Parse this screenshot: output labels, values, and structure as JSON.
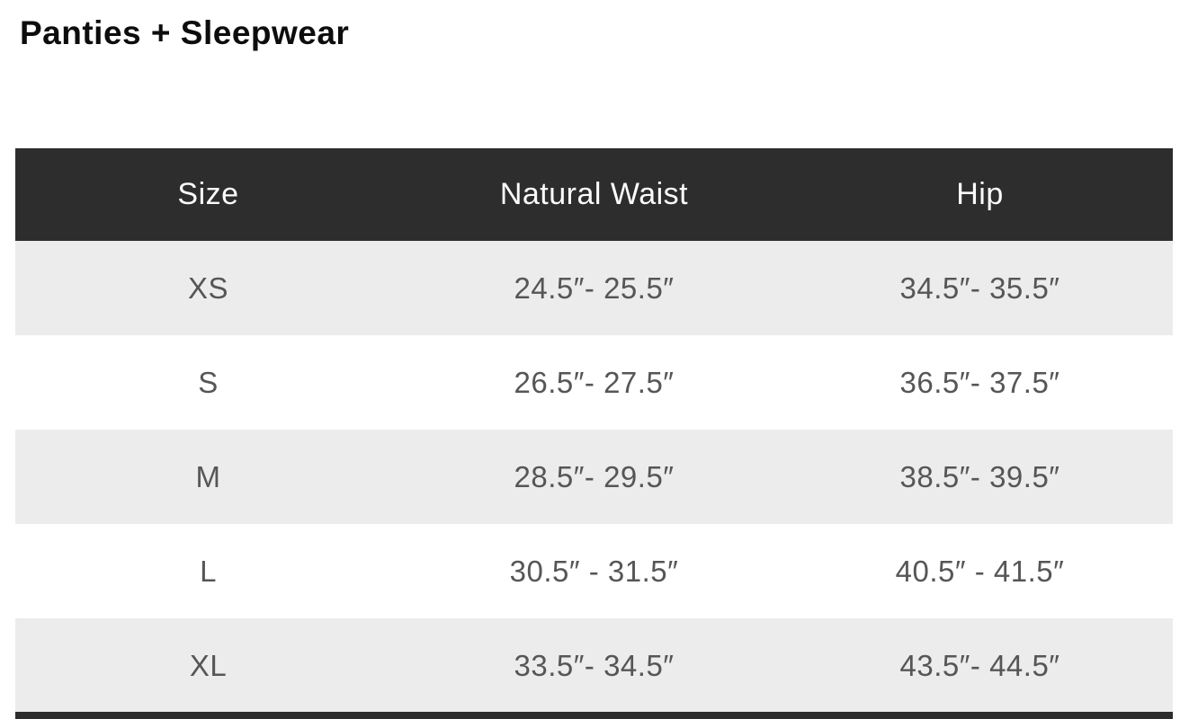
{
  "page": {
    "title": "Panties + Sleepwear"
  },
  "size_chart": {
    "columns": [
      "Size",
      "Natural Waist",
      "Hip"
    ],
    "rows": [
      {
        "size": "XS",
        "natural_waist": "24.5″- 25.5″",
        "hip": "34.5″- 35.5″"
      },
      {
        "size": "S",
        "natural_waist": "26.5″- 27.5″",
        "hip": "36.5″- 37.5″"
      },
      {
        "size": "M",
        "natural_waist": "28.5″- 29.5″",
        "hip": "38.5″- 39.5″"
      },
      {
        "size": "L",
        "natural_waist": "30.5″ - 31.5″",
        "hip": "40.5″ - 41.5″"
      },
      {
        "size": "XL",
        "natural_waist": "33.5″- 34.5″",
        "hip": "43.5″- 44.5″"
      }
    ]
  },
  "colors": {
    "header_bg": "#2d2d2d",
    "header_text": "#fbfbfb",
    "row_alt_bg": "#ececec",
    "row_bg": "#ffffff",
    "body_text": "#565656",
    "title_text": "#0d0d0d"
  }
}
